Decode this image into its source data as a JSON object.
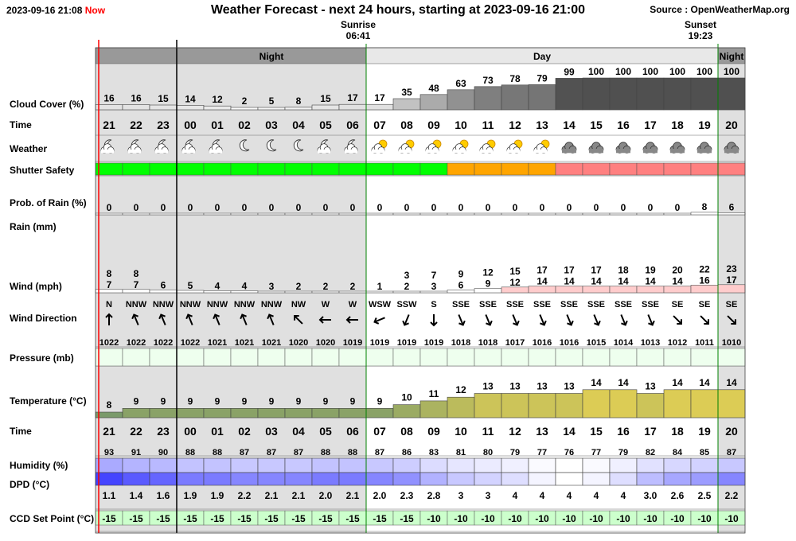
{
  "header": {
    "timestamp": "2023-09-16 21:08",
    "now_label": "Now",
    "title": "Weather Forecast - next 24 hours, starting at 2023-09-16 21:00",
    "source": "Source : OpenWeatherMap.org",
    "sunrise_label": "Sunrise",
    "sunrise_time": "06:41",
    "sunset_label": "Sunset",
    "sunset_time": "19:23"
  },
  "colors": {
    "night_band": "#999999",
    "day_band": "#e8e8e8",
    "night_bg": "#e0e0e0",
    "safe": "#00ff00",
    "caution": "#ffa500",
    "unsafe": "#ff8080",
    "now_line": "#ff0000",
    "sun_line": "#008000",
    "ccd": "#ccffcc"
  },
  "chart_data": {
    "type": "table",
    "period_bands": [
      {
        "label": "",
        "start": 0,
        "end": 3,
        "kind": "night"
      },
      {
        "label": "Night",
        "start": 3,
        "end": 10,
        "kind": "night"
      },
      {
        "label": "Day",
        "start": 10,
        "end": 23,
        "kind": "day"
      },
      {
        "label": "Night",
        "start": 23,
        "end": 24,
        "kind": "night"
      }
    ],
    "row_labels": {
      "cloud": "Cloud Cover (%)",
      "time": "Time",
      "weather": "Weather",
      "shutter": "Shutter Safety",
      "rain_prob": "Prob. of Rain (%)",
      "rain": "Rain (mm)",
      "wind": "Wind (mph)",
      "wind_dir": "Wind Direction",
      "pressure": "Pressure (mb)",
      "temperature": "Temperature (°C)",
      "time2": "Time",
      "humidity": "Humidity (%)",
      "dpd": "DPD (°C)",
      "ccd": "CCD Set Point (°C)"
    },
    "hours": [
      "21",
      "22",
      "23",
      "00",
      "01",
      "02",
      "03",
      "04",
      "05",
      "06",
      "07",
      "08",
      "09",
      "10",
      "11",
      "12",
      "13",
      "14",
      "15",
      "16",
      "17",
      "18",
      "19",
      "20"
    ],
    "cloud_cover": [
      16,
      16,
      15,
      14,
      12,
      2,
      5,
      8,
      15,
      17,
      17,
      35,
      48,
      63,
      73,
      78,
      79,
      99,
      100,
      100,
      100,
      100,
      100,
      100
    ],
    "weather_icons": [
      "partly-cloudy-night-icon",
      "partly-cloudy-night-icon",
      "partly-cloudy-night-icon",
      "partly-cloudy-night-icon",
      "partly-cloudy-night-icon",
      "clear-night-icon",
      "clear-night-icon",
      "clear-night-icon",
      "partly-cloudy-night-icon",
      "partly-cloudy-night-icon",
      "partly-cloudy-day-icon",
      "partly-cloudy-day-icon",
      "partly-cloudy-day-icon",
      "partly-cloudy-day-icon",
      "partly-cloudy-day-icon",
      "partly-cloudy-day-icon",
      "partly-cloudy-day-icon",
      "overcast-icon",
      "overcast-icon",
      "overcast-icon",
      "overcast-icon",
      "overcast-icon",
      "overcast-icon",
      "overcast-icon"
    ],
    "shutter_safety": [
      "safe",
      "safe",
      "safe",
      "safe",
      "safe",
      "safe",
      "safe",
      "safe",
      "safe",
      "safe",
      "safe",
      "safe",
      "safe",
      "caution",
      "caution",
      "caution",
      "caution",
      "unsafe",
      "unsafe",
      "unsafe",
      "unsafe",
      "unsafe",
      "unsafe",
      "unsafe"
    ],
    "rain_probability": [
      0,
      0,
      0,
      0,
      0,
      0,
      0,
      0,
      0,
      0,
      0,
      0,
      0,
      0,
      0,
      0,
      0,
      0,
      0,
      0,
      0,
      0,
      8,
      6
    ],
    "rain_mm": [
      0,
      0,
      0,
      0,
      0,
      0,
      0,
      0,
      0,
      0,
      0,
      0,
      0,
      0,
      0,
      0,
      0,
      0,
      0,
      0,
      0,
      0,
      0,
      0
    ],
    "wind_gust": [
      8,
      8,
      null,
      null,
      null,
      null,
      null,
      null,
      null,
      null,
      null,
      3,
      7,
      9,
      12,
      15,
      17,
      17,
      17,
      18,
      19,
      20,
      22,
      23
    ],
    "wind_speed": [
      7,
      7,
      6,
      5,
      4,
      4,
      3,
      2,
      2,
      2,
      1,
      2,
      3,
      6,
      9,
      12,
      14,
      14,
      14,
      14,
      14,
      14,
      16,
      17
    ],
    "wind_direction": [
      "N",
      "NNW",
      "NNW",
      "NNW",
      "NNW",
      "NNW",
      "NNW",
      "NW",
      "W",
      "W",
      "WSW",
      "SSW",
      "S",
      "SSE",
      "SSE",
      "SSE",
      "SSE",
      "SSE",
      "SSE",
      "SSE",
      "SSE",
      "SE",
      "SE",
      "SE"
    ],
    "pressure": [
      1022,
      1022,
      1022,
      1022,
      1021,
      1021,
      1021,
      1020,
      1020,
      1019,
      1019,
      1019,
      1019,
      1018,
      1018,
      1017,
      1016,
      1016,
      1015,
      1014,
      1013,
      1012,
      1011,
      1010
    ],
    "temperature": [
      8,
      9,
      9,
      9,
      9,
      9,
      9,
      9,
      9,
      9,
      9,
      10,
      11,
      12,
      13,
      13,
      13,
      13,
      14,
      14,
      13,
      14,
      14,
      14
    ],
    "humidity": [
      93,
      91,
      90,
      88,
      88,
      87,
      87,
      87,
      88,
      88,
      87,
      86,
      83,
      81,
      80,
      79,
      77,
      76,
      77,
      79,
      82,
      84,
      85,
      87
    ],
    "dpd": [
      "1.1",
      "1.4",
      "1.6",
      "1.9",
      "1.9",
      "2.2",
      "2.1",
      "2.1",
      "2.0",
      "2.1",
      "2.0",
      "2.3",
      "2.8",
      "3",
      "3",
      "4",
      "4",
      "4",
      "4",
      "4",
      "3.0",
      "2.6",
      "2.5",
      "2.2"
    ],
    "ccd_set_point": [
      -15,
      -15,
      -15,
      -15,
      -15,
      -15,
      -15,
      -15,
      -15,
      -15,
      -15,
      -15,
      -10,
      -10,
      -10,
      -10,
      -10,
      -10,
      -10,
      -10,
      -10,
      -10,
      -10,
      -10
    ]
  }
}
